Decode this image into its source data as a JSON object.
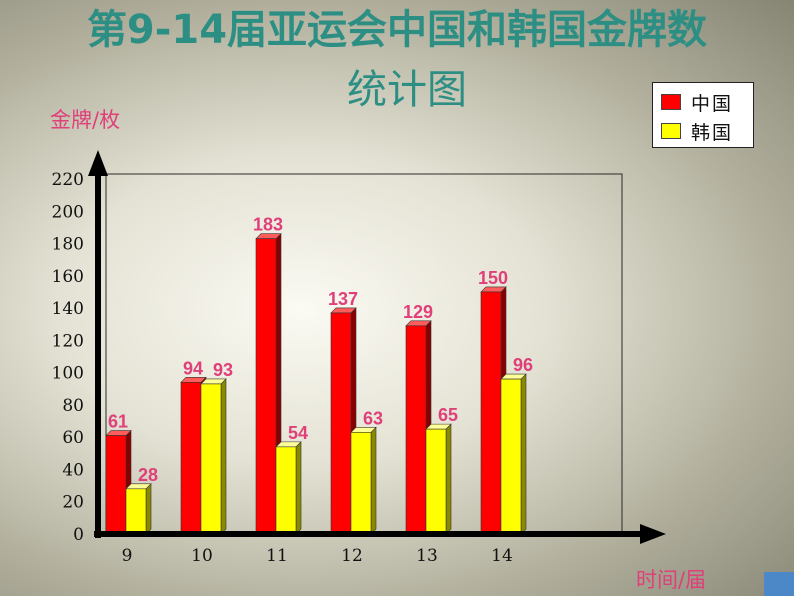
{
  "title_line1": "第9-14届亚运会中国和韩国金牌数",
  "title_line2": "统计图",
  "ylabel": "金牌/枚",
  "xlabel": "时间/届",
  "colors": {
    "china": "#ff0000",
    "korea": "#ffff00",
    "title": "#2d8f84",
    "annotation": "#e0407a"
  },
  "chart_data": {
    "type": "bar",
    "title": "第9-14届亚运会中国和韩国金牌数统计图",
    "xlabel": "时间/届",
    "ylabel": "金牌/枚",
    "categories": [
      "9",
      "10",
      "11",
      "12",
      "13",
      "14"
    ],
    "series": [
      {
        "name": "中国",
        "values": [
          61,
          94,
          183,
          137,
          129,
          150
        ]
      },
      {
        "name": "韩国",
        "values": [
          28,
          93,
          54,
          63,
          65,
          96
        ]
      }
    ],
    "yticks": [
      0,
      20,
      40,
      60,
      80,
      100,
      120,
      140,
      160,
      180,
      200,
      220
    ],
    "ylim": [
      0,
      220
    ],
    "grid": false,
    "legend_position": "top-right",
    "bar_style": "3d"
  }
}
